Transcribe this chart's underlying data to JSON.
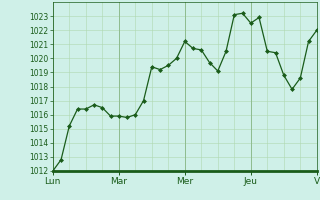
{
  "background_color": "#cff0e8",
  "plot_bg_color": "#cff0e8",
  "line_color": "#1a5c1a",
  "marker_color": "#1a5c1a",
  "grid_color_major": "#8fbc8f",
  "grid_color_minor": "#b0d8b0",
  "ylim_min": 1012,
  "ylim_max": 1024,
  "yticks": [
    1012,
    1013,
    1014,
    1015,
    1016,
    1017,
    1018,
    1019,
    1020,
    1021,
    1022,
    1023
  ],
  "day_labels": [
    "Lun",
    "Mar",
    "Mer",
    "Jeu",
    "V"
  ],
  "day_positions": [
    0,
    8,
    16,
    24,
    32
  ],
  "tick_label_color": "#1a5c1a",
  "axis_line_color": "#1a5c1a",
  "x_values": [
    0,
    1,
    2,
    3,
    4,
    5,
    6,
    7,
    8,
    9,
    10,
    11,
    12,
    13,
    14,
    15,
    16,
    17,
    18,
    19,
    20,
    21,
    22,
    23,
    24,
    25,
    26,
    27,
    28,
    29,
    30,
    31,
    32
  ],
  "y_values": [
    1012.0,
    1012.8,
    1015.2,
    1016.4,
    1016.4,
    1016.7,
    1016.5,
    1015.9,
    1015.9,
    1015.8,
    1016.0,
    1017.0,
    1019.4,
    1019.2,
    1019.5,
    1020.0,
    1021.2,
    1020.7,
    1020.6,
    1019.7,
    1019.1,
    1020.5,
    1023.1,
    1023.2,
    1022.5,
    1022.9,
    1020.5,
    1020.4,
    1018.8,
    1017.8,
    1018.6,
    1021.2,
    1022.0
  ],
  "ylabel_fontsize": 5.5,
  "xlabel_fontsize": 6.5,
  "marker_size": 2.0,
  "linewidth": 0.9
}
